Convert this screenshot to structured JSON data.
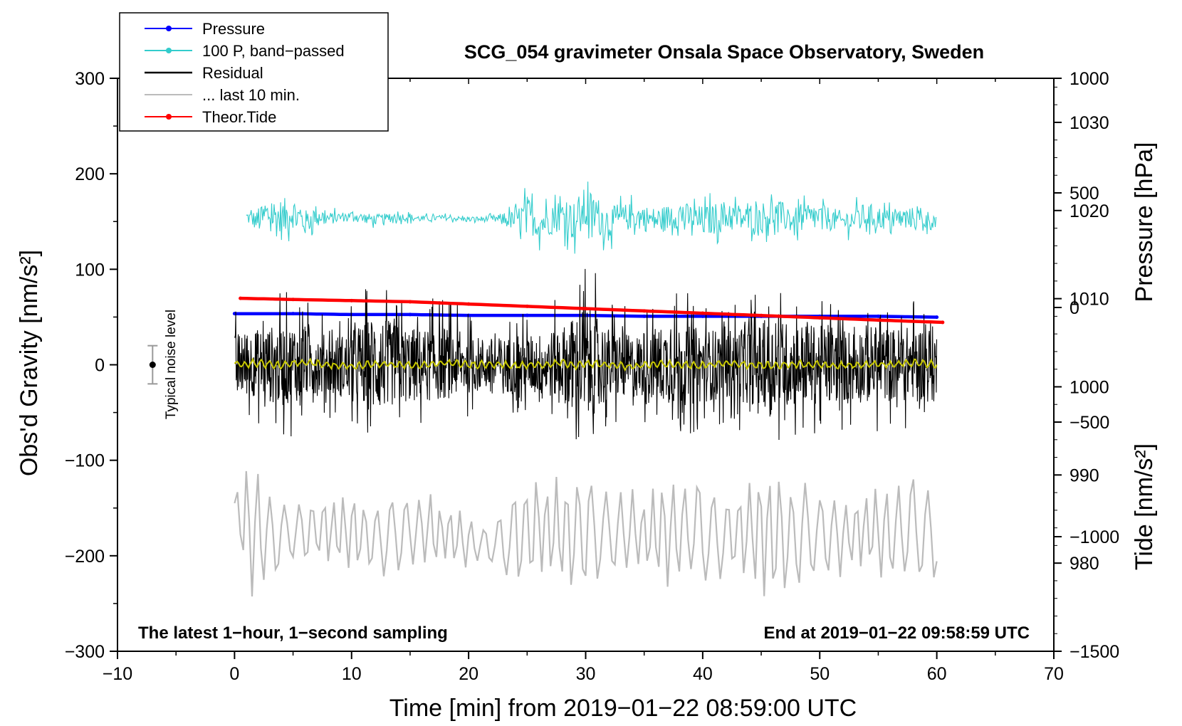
{
  "chart_data": {
    "type": "line",
    "title": "SCG_054 gravimeter Onsala Space Observatory, Sweden",
    "xlabel": "Time [min] from 2019−01−22 08:59:00 UTC",
    "ylabel_left": "Obs'd Gravity [nm/s²]",
    "ylabel_right_top": "Pressure [hPa]",
    "ylabel_right_bottom": "Tide [nm/s²]",
    "note_left": "The latest 1−hour, 1−second sampling",
    "note_right": "End at 2019−01−22 09:58:59 UTC",
    "noise_label": "Typical noise level",
    "xlim": [
      -10,
      70
    ],
    "ylim_left": [
      -300,
      300
    ],
    "ylim_pressure": [
      970,
      1035
    ],
    "ylim_tide": [
      -1500,
      1000
    ],
    "x_ticks": [
      -10,
      0,
      10,
      20,
      30,
      40,
      50,
      60,
      70
    ],
    "x_tick_labels": [
      "−10",
      "0",
      "10",
      "20",
      "30",
      "40",
      "50",
      "60",
      "70"
    ],
    "y_left_ticks": [
      -300,
      -200,
      -100,
      0,
      100,
      200,
      300
    ],
    "y_left_tick_labels": [
      "−300",
      "−200",
      "−100",
      "0",
      "100",
      "200",
      "300"
    ],
    "pressure_ticks": [
      980,
      990,
      1000,
      1010,
      1020,
      1030
    ],
    "pressure_tick_labels": [
      "980",
      "990",
      "1000",
      "1010",
      "1020",
      "1030"
    ],
    "tide_ticks": [
      -1500,
      -1000,
      -500,
      0,
      500,
      1000
    ],
    "tide_tick_labels": [
      "−1500",
      "−1000",
      "−500",
      "0",
      "500",
      "1000"
    ],
    "noise_level": {
      "x": -7,
      "y": 0,
      "err": 20
    },
    "legend": [
      {
        "label": "Pressure",
        "color": "#0000ff",
        "marker": true
      },
      {
        "label": "100 P, band−passed",
        "color": "#33cccc",
        "marker": true
      },
      {
        "label": "Residual",
        "color": "#000000",
        "marker": false
      },
      {
        "label": "... last 10 min.",
        "color": "#bbbbbb",
        "marker": false
      },
      {
        "label": "Theor.Tide",
        "color": "#ff0000",
        "marker": true
      }
    ],
    "series": [
      {
        "name": "Pressure",
        "axis": "pressure",
        "color": "#0000ff",
        "x": [
          0,
          5,
          10,
          15,
          20,
          25,
          30,
          35,
          40,
          45,
          50,
          55,
          60
        ],
        "values": [
          1008.3,
          1008.3,
          1008.2,
          1008.2,
          1008.1,
          1008.1,
          1008.1,
          1008.0,
          1008.0,
          1008.0,
          1008.0,
          1008.0,
          1007.9
        ]
      },
      {
        "name": "100 P, band-passed",
        "axis": "left",
        "color": "#33cccc",
        "x": [
          1,
          2,
          3,
          4,
          5,
          6,
          7,
          8,
          10,
          12,
          14,
          16,
          18,
          20,
          22,
          24,
          25,
          26,
          28,
          29,
          30,
          32,
          34,
          36,
          38,
          40,
          42,
          44,
          46,
          48,
          50,
          52,
          54,
          56,
          58,
          60
        ],
        "values": [
          155,
          150,
          158,
          152,
          160,
          148,
          157,
          153,
          156,
          152,
          155,
          153,
          154,
          152,
          153,
          151,
          158,
          148,
          157,
          150,
          162,
          149,
          156,
          151,
          157,
          150,
          156,
          152,
          158,
          151,
          155,
          150,
          156,
          152,
          154,
          150
        ],
        "envelope": [
          12,
          20,
          35,
          40,
          30,
          25,
          20,
          12,
          8,
          10,
          8,
          6,
          5,
          5,
          6,
          20,
          35,
          30,
          30,
          40,
          45,
          30,
          25,
          25,
          25,
          30,
          30,
          25,
          30,
          25,
          25,
          20,
          25,
          20,
          20,
          18
        ]
      },
      {
        "name": "Residual",
        "axis": "left",
        "color": "#000000",
        "x": [
          0,
          2,
          4,
          6,
          8,
          10,
          12,
          14,
          16,
          18,
          20,
          22,
          24,
          26,
          28,
          29,
          30,
          32,
          34,
          36,
          38,
          40,
          42,
          44,
          46,
          48,
          50,
          52,
          54,
          56,
          58,
          60
        ],
        "values": [
          0,
          2,
          -1,
          3,
          0,
          -2,
          1,
          0,
          -1,
          2,
          0,
          1,
          -1,
          0,
          2,
          -1,
          1,
          0,
          -2,
          1,
          0,
          -1,
          2,
          0,
          -1,
          1,
          0,
          -1,
          1,
          0,
          2,
          0
        ],
        "envelope": [
          60,
          65,
          80,
          70,
          55,
          65,
          95,
          75,
          70,
          70,
          55,
          50,
          55,
          60,
          70,
          95,
          115,
          70,
          60,
          70,
          80,
          70,
          65,
          75,
          85,
          80,
          75,
          70,
          75,
          70,
          70,
          75
        ]
      },
      {
        "name": "... last 10 min.",
        "axis": "left",
        "color": "#bbbbbb",
        "x": [
          0,
          1,
          2,
          4,
          6,
          8,
          10,
          12,
          14,
          16,
          18,
          20,
          22,
          24,
          25,
          27,
          29,
          30,
          32,
          34,
          36,
          38,
          40,
          42,
          44,
          46,
          48,
          50,
          52,
          54,
          56,
          58,
          60
        ],
        "values": [
          -145,
          -170,
          -175,
          -180,
          -175,
          -170,
          -178,
          -180,
          -175,
          -172,
          -178,
          -185,
          -190,
          -182,
          -170,
          -175,
          -180,
          -172,
          -178,
          -175,
          -180,
          -172,
          -178,
          -180,
          -170,
          -175,
          -180,
          -175,
          -178,
          -172,
          -180,
          -175,
          -178
        ],
        "envelope": [
          5,
          80,
          75,
          40,
          35,
          40,
          45,
          40,
          55,
          45,
          40,
          30,
          20,
          65,
          55,
          60,
          60,
          70,
          45,
          45,
          55,
          60,
          65,
          45,
          60,
          80,
          60,
          50,
          45,
          45,
          50,
          65,
          60
        ]
      },
      {
        "name": "Theor.Tide",
        "axis": "tide",
        "color": "#ff0000",
        "x": [
          0.5,
          5,
          10,
          15,
          20,
          25,
          30,
          35,
          40,
          45,
          50,
          55,
          60.5
        ],
        "values": [
          40,
          35,
          30,
          25,
          15,
          5,
          -5,
          -15,
          -25,
          -35,
          -45,
          -55,
          -65
        ]
      }
    ]
  }
}
